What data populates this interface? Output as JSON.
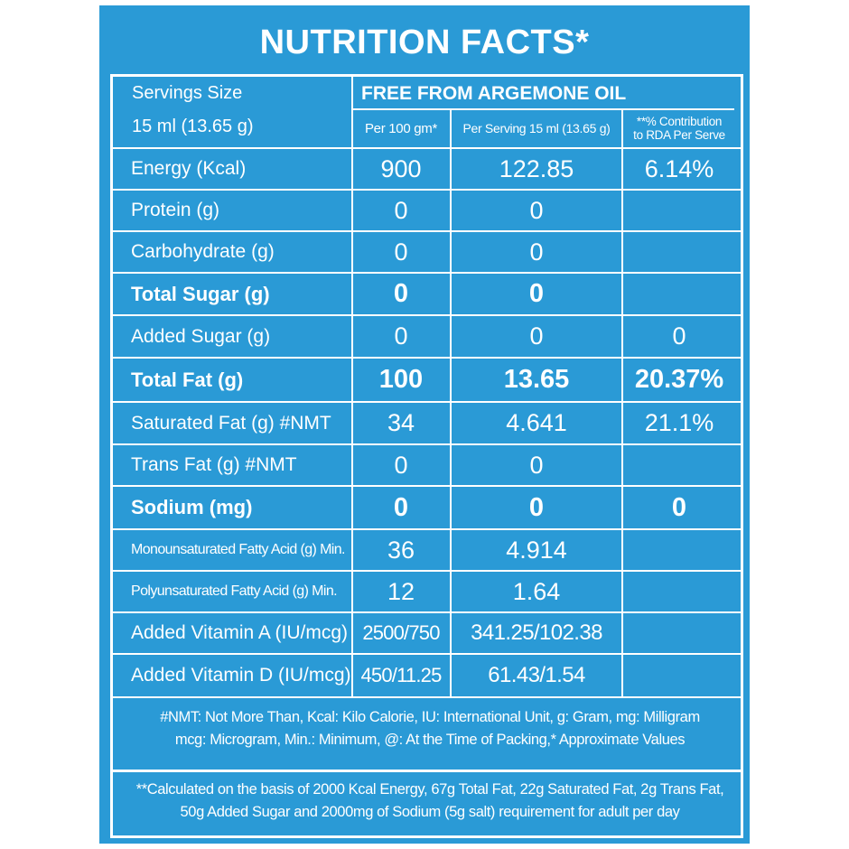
{
  "title": "NUTRITION FACTS*",
  "header": {
    "servings_label": "Servings Size",
    "servings_value": "15 ml (13.65 g)",
    "claim": "FREE FROM ARGEMONE OIL",
    "col1": "Per 100 gm*",
    "col2": "Per Serving 15 ml (13.65 g)",
    "col3_line1": "**% Contribution",
    "col3_line2": "to RDA Per Serve"
  },
  "rows": [
    {
      "label": "Energy (Kcal)",
      "per100": "900",
      "serving": "122.85",
      "rda": "6.14%"
    },
    {
      "label": "Protein (g)",
      "per100": "0",
      "serving": "0",
      "rda": ""
    },
    {
      "label": "Carbohydrate (g)",
      "per100": "0",
      "serving": "0",
      "rda": ""
    },
    {
      "label": "Total Sugar (g)",
      "per100": "0",
      "serving": "0",
      "rda": ""
    },
    {
      "label": "Added Sugar (g)",
      "per100": "0",
      "serving": "0",
      "rda": "0"
    },
    {
      "label": "Total Fat (g)",
      "per100": "100",
      "serving": "13.65",
      "rda": "20.37%"
    },
    {
      "label": "Saturated Fat (g) #NMT",
      "per100": "34",
      "serving": "4.641",
      "rda": "21.1%"
    },
    {
      "label": "Trans Fat (g) #NMT",
      "per100": "0",
      "serving": "0",
      "rda": ""
    },
    {
      "label": "Sodium (mg)",
      "per100": "0",
      "serving": "0",
      "rda": "0"
    },
    {
      "label": "Monounsaturated Fatty Acid (g) Min.",
      "per100": "36",
      "serving": "4.914",
      "rda": ""
    },
    {
      "label": "Polyunsaturated Fatty Acid (g) Min.",
      "per100": "12",
      "serving": "1.64",
      "rda": ""
    },
    {
      "label": "Added Vitamin A (IU/mcg) @",
      "per100": "2500/750",
      "serving": "341.25/102.38",
      "rda": ""
    },
    {
      "label": "Added Vitamin D (IU/mcg) @",
      "per100": "450/11.25",
      "serving": "61.43/1.54",
      "rda": ""
    }
  ],
  "footnote1_line1": "#NMT: Not More Than, Kcal: Kilo Calorie, IU: International Unit, g: Gram, mg: Milligram",
  "footnote1_line2": "mcg: Microgram, Min.: Minimum, @: At the Time of Packing,* Approximate Values",
  "footnote2_line1": "**Calculated on the basis of 2000 Kcal Energy, 67g Total Fat, 22g Saturated Fat, 2g Trans Fat,",
  "footnote2_line2": "50g Added Sugar and 2000mg of Sodium (5g salt) requirement for adult per day",
  "colors": {
    "panel": "#2a9ad6",
    "text": "#ffffff"
  }
}
